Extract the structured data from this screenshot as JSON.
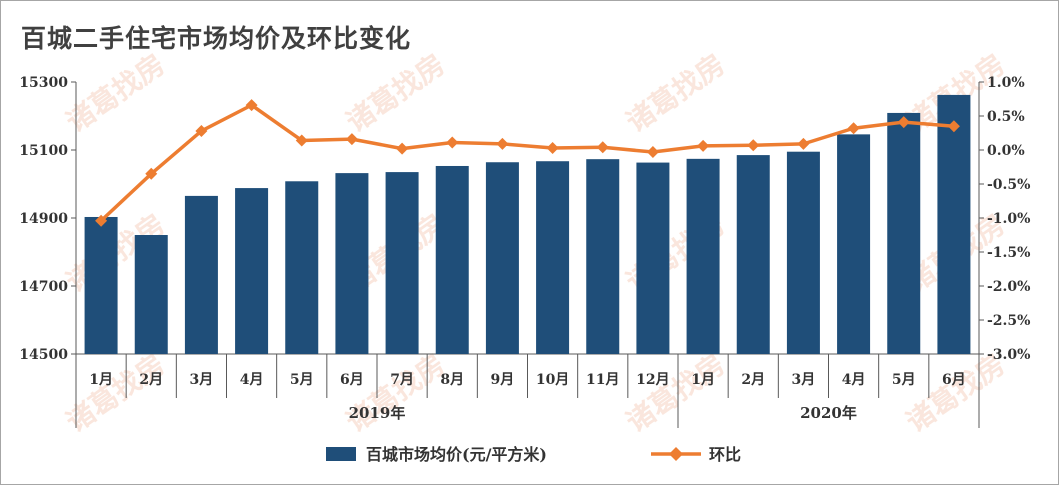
{
  "title": "百城二手住宅市场均价及环比变化",
  "watermark": "诸葛找房",
  "chart_data": {
    "type": "bar",
    "categories": [
      "1月",
      "2月",
      "3月",
      "4月",
      "5月",
      "6月",
      "7月",
      "8月",
      "9月",
      "10月",
      "11月",
      "12月",
      "1月",
      "2月",
      "3月",
      "4月",
      "5月",
      "6月"
    ],
    "year_groups": [
      {
        "label": "2019年",
        "from": 0,
        "to": 11
      },
      {
        "label": "2020年",
        "from": 12,
        "to": 17
      }
    ],
    "series": [
      {
        "name": "百城市场均价(元/平方米)",
        "type": "bar",
        "axis": "left",
        "color": "#1f4e79",
        "values": [
          14903,
          14850,
          14965,
          14988,
          15008,
          15032,
          15035,
          15053,
          15064,
          15067,
          15073,
          15063,
          15074,
          15085,
          15095,
          15146,
          15209,
          15262
        ]
      },
      {
        "name": "环比",
        "type": "line",
        "axis": "right",
        "color": "#ed7d31",
        "values": [
          -1.04,
          -0.35,
          0.28,
          0.66,
          0.14,
          0.16,
          0.02,
          0.11,
          0.09,
          0.03,
          0.04,
          -0.03,
          0.06,
          0.07,
          0.09,
          0.32,
          0.41,
          0.35
        ]
      }
    ],
    "y_left": {
      "min": 14500,
      "max": 15300,
      "ticks": [
        "14500",
        "14700",
        "14900",
        "15100",
        "15300"
      ]
    },
    "y_right": {
      "min": -3.0,
      "max": 1.0,
      "ticks": [
        "1.0%",
        "0.5%",
        "0.0%",
        "-0.5%",
        "-1.0%",
        "-1.5%",
        "-2.0%",
        "-2.5%",
        "-3.0%"
      ]
    },
    "legend_position": "bottom",
    "grid": false
  }
}
